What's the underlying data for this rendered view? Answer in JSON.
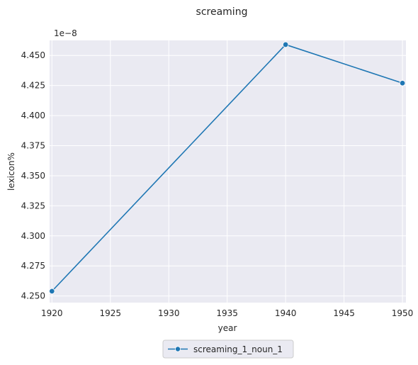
{
  "chart_data": {
    "type": "line",
    "title": "screaming",
    "xlabel": "year",
    "ylabel": "lexicon%",
    "y_offset_label": "1e−8",
    "xlim": [
      1919.8,
      1950.3
    ],
    "ylim": [
      4.2445,
      4.4625
    ],
    "x_ticks": [
      1920,
      1925,
      1930,
      1935,
      1940,
      1945,
      1950
    ],
    "y_ticks": [
      4.25,
      4.275,
      4.3,
      4.325,
      4.35,
      4.375,
      4.4,
      4.425,
      4.45
    ],
    "x_tick_labels": [
      "1920",
      "1925",
      "1930",
      "1935",
      "1940",
      "1945",
      "1950"
    ],
    "y_tick_labels": [
      "4.250",
      "4.275",
      "4.300",
      "4.325",
      "4.350",
      "4.375",
      "4.400",
      "4.425",
      "4.450"
    ],
    "grid": true,
    "legend_position": "bottom-center",
    "series": [
      {
        "name": "screaming_1_noun_1",
        "color": "#1f77b4",
        "marker": "circle",
        "x": [
          1920,
          1940,
          1950
        ],
        "y": [
          4.254,
          4.459,
          4.427
        ]
      }
    ]
  }
}
